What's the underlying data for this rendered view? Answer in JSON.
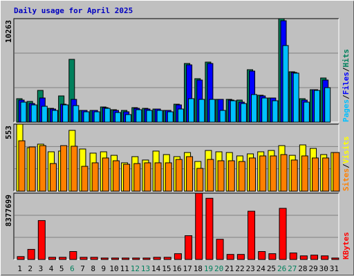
{
  "chart_data": [
    {
      "type": "bar",
      "title": "Daily usage for April 2025",
      "categories": [
        "1",
        "2",
        "3",
        "4",
        "5",
        "6",
        "7",
        "8",
        "9",
        "10",
        "11",
        "12",
        "13",
        "14",
        "15",
        "16",
        "17",
        "18",
        "19",
        "20",
        "21",
        "22",
        "23",
        "24",
        "25",
        "26",
        "27",
        "28",
        "29",
        "30",
        "31"
      ],
      "category_colors": [
        "#000000",
        "#000000",
        "#000000",
        "#000000",
        "#000000",
        "#00805c",
        "#000000",
        "#000000",
        "#000000",
        "#000000",
        "#000000",
        "#00805c",
        "#00805c",
        "#000000",
        "#000000",
        "#000000",
        "#000000",
        "#000000",
        "#00805c",
        "#00805c",
        "#000000",
        "#000000",
        "#000000",
        "#000000",
        "#000000",
        "#00805c",
        "#00805c",
        "#000000",
        "#000000",
        "#000000",
        "#000000"
      ],
      "legend_separator": "/",
      "ylim": [
        0,
        10263
      ],
      "yticks": [
        10263
      ],
      "series": [
        {
          "name": "Hits",
          "color": "#00805c",
          "values": [
            2326,
            2053,
            3147,
            1368,
            2600,
            6226,
            1163,
            1163,
            1505,
            1232,
            1163,
            1437,
            1368,
            1300,
            1163,
            1779,
            5816,
            4310,
            5953,
            2258,
            2258,
            2189,
            5200,
            2668,
            2395,
            10263,
            4995,
            2326,
            3216,
            4379,
            null
          ]
        },
        {
          "name": "Files",
          "color": "#0000ff",
          "values": [
            2189,
            1847,
            2395,
            1300,
            1779,
            2258,
            1163,
            1163,
            1437,
            1163,
            1026,
            1368,
            1300,
            1300,
            1163,
            1711,
            5679,
            4174,
            5816,
            2258,
            2189,
            1984,
            5063,
            2600,
            2395,
            10058,
            4926,
            2189,
            3216,
            4174,
            null
          ]
        },
        {
          "name": "Pages",
          "color": "#00c0ff",
          "values": [
            1984,
            1711,
            1574,
            1163,
            1711,
            1642,
            1026,
            1026,
            1368,
            958,
            753,
            1232,
            1163,
            1163,
            1026,
            1300,
            2326,
            2258,
            2258,
            1163,
            2121,
            1847,
            2737,
            2395,
            2121,
            7595,
            4858,
            1984,
            3147,
            3421,
            null
          ]
        }
      ]
    },
    {
      "type": "bar",
      "legend_separator": "/",
      "ylim": [
        0,
        553
      ],
      "yticks": [
        553
      ],
      "series": [
        {
          "name": "Visits",
          "color": "#ffff00",
          "values": [
            553,
            359,
            388,
            325,
            331,
            502,
            348,
            314,
            325,
            296,
            234,
            285,
            257,
            331,
            302,
            285,
            319,
            245,
            336,
            325,
            319,
            291,
            308,
            325,
            336,
            376,
            296,
            382,
            353,
            302,
            319
          ]
        },
        {
          "name": "Sites",
          "color": "#ff8000",
          "values": [
            416,
            365,
            376,
            228,
            376,
            371,
            205,
            234,
            274,
            251,
            222,
            228,
            234,
            234,
            234,
            262,
            285,
            188,
            262,
            251,
            251,
            245,
            274,
            291,
            291,
            302,
            257,
            291,
            274,
            274,
            319
          ]
        }
      ]
    },
    {
      "type": "bar",
      "ylim": [
        0,
        8377699
      ],
      "yticks": [
        8377699
      ],
      "series": [
        {
          "name": "KBytes",
          "color": "#ff0000",
          "values": [
            364248,
            1274868,
            4917348,
            273186,
            273186,
            1001682,
            273186,
            273186,
            182124,
            182124,
            182124,
            182124,
            182124,
            273186,
            273186,
            728496,
            3005046,
            8377699,
            7740270,
            2549736,
            637434,
            637434,
            6101154,
            1001682,
            728496,
            6465402,
            819558,
            455310,
            546372,
            455310,
            182124
          ]
        }
      ]
    }
  ]
}
